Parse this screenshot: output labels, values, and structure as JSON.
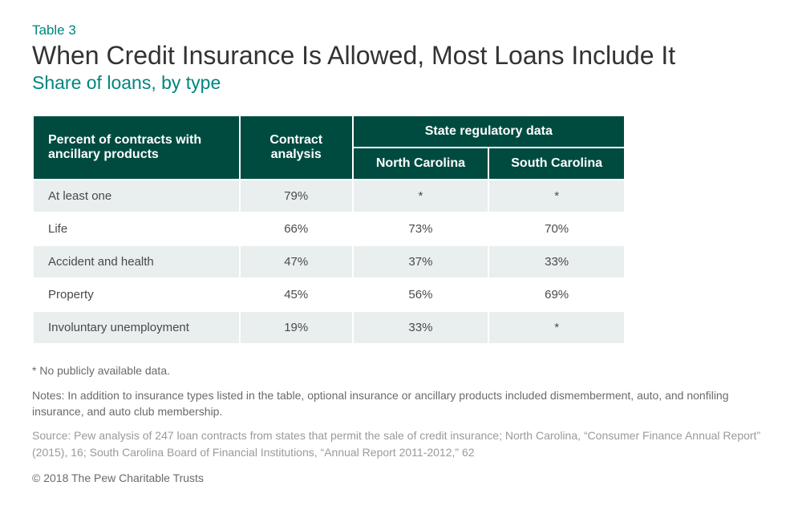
{
  "header": {
    "table_label": "Table 3",
    "title": "When Credit Insurance Is Allowed, Most Loans Include It",
    "subtitle": "Share of loans, by type"
  },
  "table": {
    "type": "table",
    "header_bg": "#004b40",
    "header_fg": "#ffffff",
    "row_bg_even": "#e9eeee",
    "row_bg_odd": "#ffffff",
    "cell_fontsize": 15,
    "header_fontsize": 16,
    "columns": {
      "col1": "Percent of contracts with ancillary products",
      "col2": "Contract analysis",
      "group": "State regulatory data",
      "sub1": "North Carolina",
      "sub2": "South Carolina"
    },
    "rows": [
      {
        "label": "At least one",
        "contract": "79%",
        "nc": "*",
        "sc": "*"
      },
      {
        "label": "Life",
        "contract": "66%",
        "nc": "73%",
        "sc": "70%"
      },
      {
        "label": "Accident and health",
        "contract": "47%",
        "nc": "37%",
        "sc": "33%"
      },
      {
        "label": "Property",
        "contract": "45%",
        "nc": "56%",
        "sc": "69%"
      },
      {
        "label": "Involuntary unemployment",
        "contract": "19%",
        "nc": "33%",
        "sc": "*"
      }
    ]
  },
  "footnotes": {
    "asterisk": "* No publicly available data.",
    "notes": "Notes: In addition to insurance types listed in the table, optional insurance or ancillary products included dismemberment, auto, and nonfiling insurance, and auto club membership.",
    "source": "Source: Pew analysis of 247 loan contracts from states that permit the sale of credit insurance; North Carolina, “Consumer Finance Annual Report” (2015), 16; South Carolina Board of Financial Institutions, “Annual Report 2011-2012,” 62",
    "copyright": "© 2018 The Pew Charitable Trusts"
  },
  "colors": {
    "accent": "#00857d",
    "title_color": "#333333",
    "footnote_color": "#6a6a6a",
    "source_color": "#9a9a9a",
    "background": "#ffffff"
  }
}
